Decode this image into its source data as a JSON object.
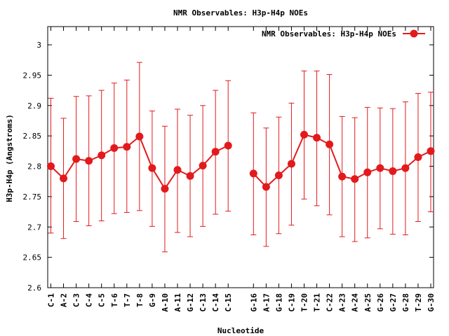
{
  "chart_data": {
    "type": "line",
    "title": "NMR Observables: H3p-H4p NOEs",
    "xlabel": "Nucleotide",
    "ylabel": "H3p-H4p (Angstroms)",
    "ylim": [
      2.6,
      3.03
    ],
    "yticks": [
      "2.6",
      "2.65",
      "2.7",
      "2.75",
      "2.8",
      "2.85",
      "2.9",
      "2.95",
      "3"
    ],
    "legend": {
      "placement": "top-right",
      "label": "NMR Observables: H3p-H4p NOEs"
    },
    "grid": false,
    "color": "#e31a1c",
    "categories": [
      "C-1",
      "A-2",
      "C-3",
      "C-4",
      "C-5",
      "T-6",
      "T-7",
      "T-8",
      "G-9",
      "A-10",
      "A-11",
      "G-12",
      "C-13",
      "C-14",
      "C-15",
      "G-16",
      "A-17",
      "G-18",
      "C-19",
      "T-20",
      "T-21",
      "C-22",
      "A-23",
      "A-24",
      "A-25",
      "G-26",
      "G-27",
      "G-28",
      "T-29",
      "G-30"
    ],
    "series": [
      {
        "name": "NMR Observables: H3p-H4p NOEs",
        "values": [
          2.8,
          2.78,
          2.812,
          2.809,
          2.818,
          2.83,
          2.832,
          2.849,
          2.797,
          2.763,
          2.794,
          2.784,
          2.801,
          2.824,
          2.834,
          2.788,
          2.766,
          2.785,
          2.804,
          2.852,
          2.847,
          2.836,
          2.783,
          2.779,
          2.79,
          2.797,
          2.792,
          2.797,
          2.815,
          2.825
        ],
        "err_low": [
          2.69,
          2.681,
          2.709,
          2.702,
          2.71,
          2.722,
          2.724,
          2.727,
          2.701,
          2.659,
          2.691,
          2.684,
          2.701,
          2.721,
          2.726,
          2.687,
          2.668,
          2.689,
          2.703,
          2.746,
          2.735,
          2.72,
          2.684,
          2.676,
          2.682,
          2.697,
          2.688,
          2.687,
          2.709,
          2.725
        ],
        "err_high": [
          2.912,
          2.879,
          2.915,
          2.916,
          2.925,
          2.937,
          2.942,
          2.971,
          2.891,
          2.866,
          2.894,
          2.884,
          2.9,
          2.925,
          2.941,
          2.888,
          2.863,
          2.881,
          2.904,
          2.957,
          2.957,
          2.951,
          2.882,
          2.88,
          2.897,
          2.896,
          2.895,
          2.906,
          2.92,
          2.922
        ]
      }
    ]
  }
}
